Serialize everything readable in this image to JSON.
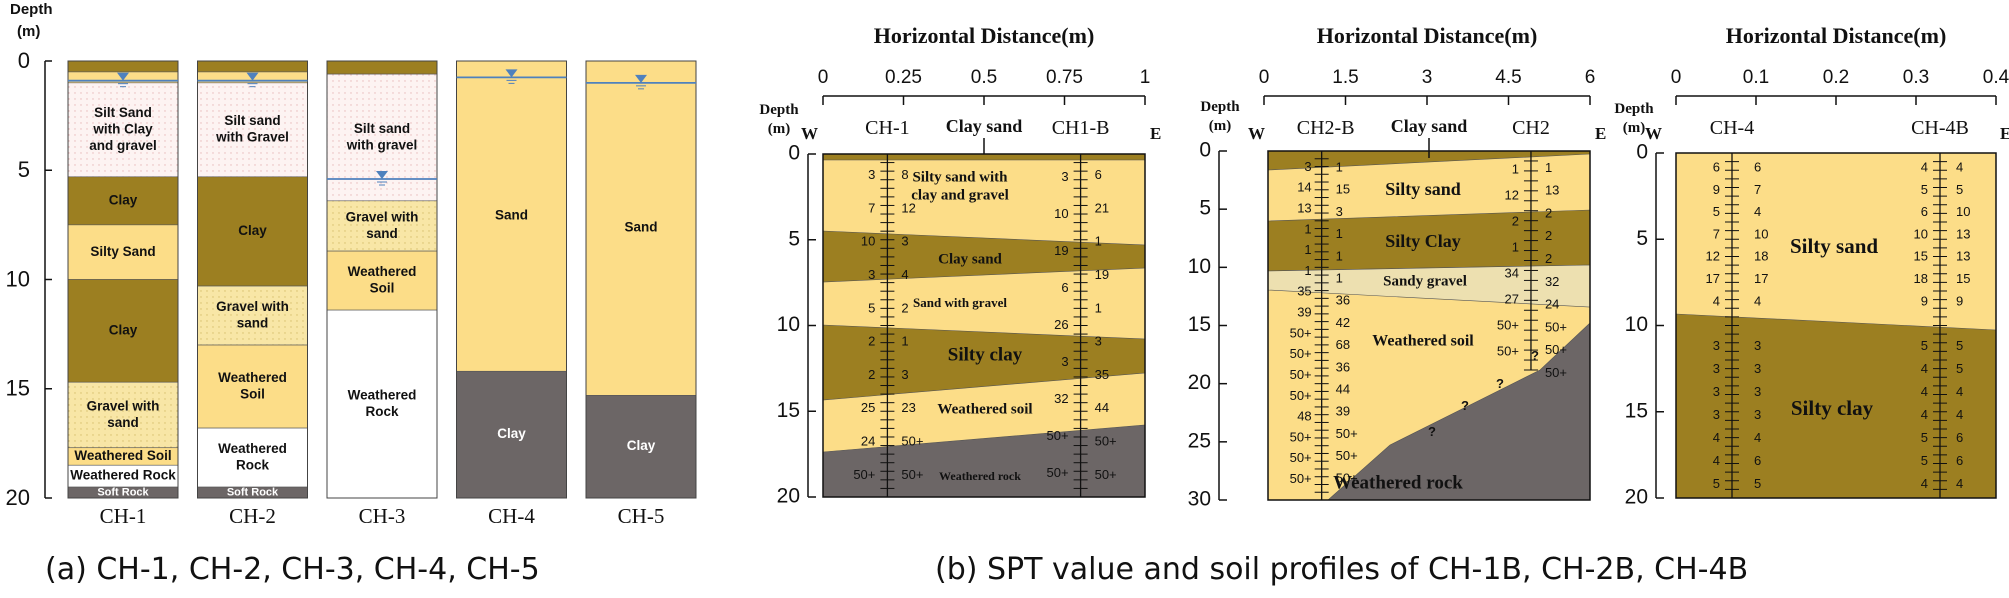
{
  "colors": {
    "sand": "#FCDD88",
    "clay": "#9C7F21",
    "rock": "#6C6666",
    "gravel": "#F8E6A6",
    "silt": "#FDF3F2",
    "water": "#4F81BD",
    "white": "#FFFFFF",
    "sandygravel": "#EDE0B0"
  },
  "panelA": {
    "ylabel": "Depth",
    "yunit": "(m)",
    "ticks": [
      "0",
      "5",
      "10",
      "15",
      "20"
    ],
    "caption": "(a) CH-1, CH-2, CH-3, CH-4, CH-5",
    "columns": [
      {
        "name": "CH-1",
        "water": 0.9,
        "layers": [
          {
            "top": 0,
            "bot": 0.5,
            "type": "clay",
            "label": ""
          },
          {
            "top": 0.5,
            "bot": 1.0,
            "type": "sand",
            "label": ""
          },
          {
            "top": 1.0,
            "bot": 5.3,
            "type": "silt",
            "label": "Silt Sand\nwith Clay\nand gravel"
          },
          {
            "top": 5.3,
            "bot": 7.5,
            "type": "clay",
            "label": "Clay"
          },
          {
            "top": 7.5,
            "bot": 10.0,
            "type": "sand",
            "label": "Silty Sand"
          },
          {
            "top": 10.0,
            "bot": 14.7,
            "type": "clay",
            "label": "Clay"
          },
          {
            "top": 14.7,
            "bot": 17.7,
            "type": "gravel",
            "label": "Gravel with\nsand"
          },
          {
            "top": 17.7,
            "bot": 18.5,
            "type": "sand",
            "label": "Weathered Soil"
          },
          {
            "top": 18.5,
            "bot": 19.5,
            "type": "white",
            "label": "Weathered Rock"
          },
          {
            "top": 19.5,
            "bot": 20,
            "type": "rock",
            "label": "Soft Rock"
          }
        ]
      },
      {
        "name": "CH-2",
        "water": 0.9,
        "layers": [
          {
            "top": 0,
            "bot": 0.5,
            "type": "clay",
            "label": ""
          },
          {
            "top": 0.5,
            "bot": 1.0,
            "type": "sand",
            "label": ""
          },
          {
            "top": 1.0,
            "bot": 5.3,
            "type": "silt",
            "label": "Silt sand\nwith Gravel"
          },
          {
            "top": 5.3,
            "bot": 10.3,
            "type": "clay",
            "label": "Clay"
          },
          {
            "top": 10.3,
            "bot": 13.0,
            "type": "gravel",
            "label": "Gravel with\nsand"
          },
          {
            "top": 13.0,
            "bot": 16.8,
            "type": "sand",
            "label": "Weathered\nSoil"
          },
          {
            "top": 16.8,
            "bot": 19.5,
            "type": "white",
            "label": "Weathered\nRock"
          },
          {
            "top": 19.5,
            "bot": 20,
            "type": "rock",
            "label": "Soft Rock"
          }
        ]
      },
      {
        "name": "CH-3",
        "water": 5.4,
        "layers": [
          {
            "top": 0,
            "bot": 0.6,
            "type": "clay",
            "label": ""
          },
          {
            "top": 0.6,
            "bot": 6.4,
            "type": "silt",
            "label": "Silt sand\nwith gravel"
          },
          {
            "top": 6.4,
            "bot": 8.7,
            "type": "gravel",
            "label": "Gravel with\nsand"
          },
          {
            "top": 8.7,
            "bot": 11.4,
            "type": "sand",
            "label": "Weathered\nSoil"
          },
          {
            "top": 11.4,
            "bot": 20,
            "type": "white",
            "label": "Weathered\nRock"
          }
        ]
      },
      {
        "name": "CH-4",
        "water": 0.75,
        "layers": [
          {
            "top": 0,
            "bot": 14.2,
            "type": "sand",
            "label": "Sand"
          },
          {
            "top": 14.2,
            "bot": 20,
            "type": "rock",
            "label": "Clay"
          }
        ]
      },
      {
        "name": "CH-5",
        "water": 1.0,
        "layers": [
          {
            "top": 0,
            "bot": 15.3,
            "type": "sand",
            "label": "Sand"
          },
          {
            "top": 15.3,
            "bot": 20,
            "type": "rock",
            "label": "Clay"
          }
        ]
      }
    ]
  },
  "panelB": {
    "caption": "(b) SPT value and soil profiles of CH-1B, CH-2B, CH-4B",
    "ylabel": "Depth",
    "yunit": "(m)",
    "west": "W",
    "east": "E",
    "profiles": [
      {
        "title": "Horizontal Distance(m)",
        "xticks": [
          "0",
          "0.25",
          "0.5",
          "0.75",
          "1"
        ],
        "xmax": 1,
        "ymax": 20,
        "yticks": [
          "0",
          "5",
          "10",
          "15",
          "20"
        ],
        "bh": [
          {
            "name": "CH-1",
            "x": 0.2
          },
          {
            "name": "CH1-B",
            "x": 0.8
          }
        ],
        "surface": "Clay sand",
        "surface_x": 0.5,
        "spt1": [
          "3",
          "7",
          "10",
          "3",
          "5",
          "2",
          "2",
          "25",
          "24",
          "50+"
        ],
        "spt2": [
          "8",
          "12",
          "3",
          "4",
          "2",
          "1",
          "3",
          "23",
          "50+",
          "50+"
        ],
        "spt3": [
          "3",
          "10",
          "19",
          "6",
          "26",
          "3",
          "32",
          "50+",
          "50+"
        ],
        "spt4": [
          "6",
          "21",
          "1",
          "19",
          "1",
          "3",
          "35",
          "44",
          "50+",
          "50+"
        ],
        "labels": [
          "Silty sand with\nclay and gravel",
          "Clay sand",
          "Sand with gravel",
          "Silty clay",
          "Weathered soil",
          "Weathered rock"
        ]
      },
      {
        "title": "Horizontal Distance(m)",
        "xticks": [
          "0",
          "1.5",
          "3",
          "4.5",
          "6"
        ],
        "xmax": 6,
        "ymax": 30,
        "yticks": [
          "0",
          "5",
          "10",
          "15",
          "20",
          "25",
          "30"
        ],
        "bh": [
          {
            "name": "CH2-B",
            "x": 1.0
          },
          {
            "name": "CH2",
            "x": 4.9
          }
        ],
        "surface": "Clay sand",
        "surface_x": 3.0,
        "spt1": [
          "3",
          "14",
          "13",
          "1",
          "1",
          "1",
          "35",
          "39",
          "50+",
          "50+",
          "50+",
          "50+",
          "48",
          "50+",
          "50+",
          "50+"
        ],
        "spt2": [
          "1",
          "15",
          "3",
          "1",
          "1",
          "1",
          "36",
          "42",
          "68",
          "36",
          "44",
          "39",
          "50+",
          "50+",
          "50+"
        ],
        "spt3": [
          "1",
          "12",
          "2",
          "1",
          "34",
          "27",
          "50+",
          "50+"
        ],
        "spt4": [
          "1",
          "13",
          "2",
          "2",
          "2",
          "32",
          "24",
          "50+",
          "50+",
          "50+"
        ],
        "labels": [
          "Silty sand",
          "Silty Clay",
          "Sandy gravel",
          "Weathered soil",
          "Weathered rock"
        ],
        "qmarks": [
          "?",
          "?",
          "?",
          "?"
        ]
      },
      {
        "title": "Horizontal Distance(m)",
        "xticks": [
          "0",
          "0.1",
          "0.2",
          "0.3",
          "0.4"
        ],
        "xmax": 0.4,
        "ymax": 20,
        "bh": [
          {
            "name": "CH-4",
            "x": 0.07
          },
          {
            "name": "CH-4B",
            "x": 0.33
          }
        ],
        "spt1": [
          "6",
          "9",
          "5",
          "7",
          "12",
          "17",
          "4",
          "3",
          "3",
          "3",
          "3",
          "4",
          "4",
          "5"
        ],
        "spt2": [
          "6",
          "7",
          "4",
          "10",
          "18",
          "17",
          "4",
          "3",
          "3",
          "3",
          "3",
          "4",
          "6",
          "5"
        ],
        "spt3": [
          "4",
          "5",
          "6",
          "10",
          "15",
          "18",
          "9",
          "5",
          "4",
          "4",
          "4",
          "5",
          "5",
          "4"
        ],
        "spt4": [
          "4",
          "5",
          "10",
          "13",
          "13",
          "15",
          "9",
          "5",
          "5",
          "4",
          "4",
          "6",
          "6",
          "4"
        ],
        "labels": [
          "Silty sand",
          "Silty clay"
        ]
      }
    ]
  }
}
